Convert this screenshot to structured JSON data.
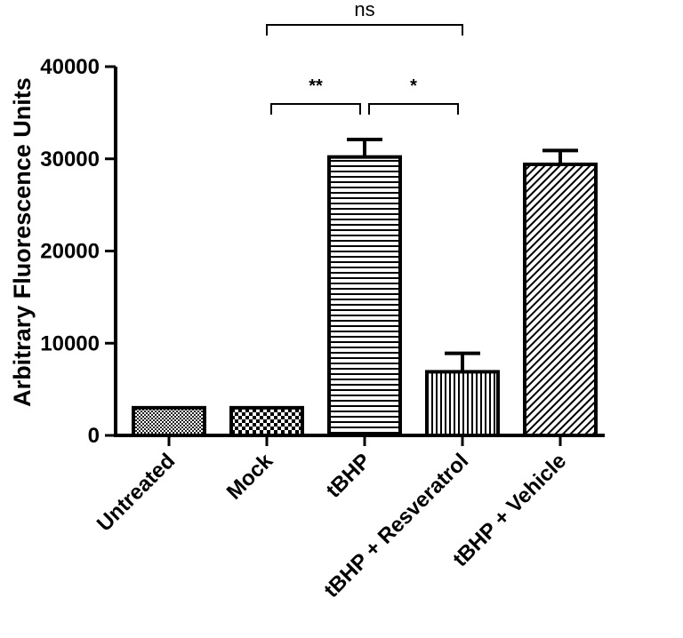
{
  "chart_data": {
    "type": "bar",
    "ylabel": "Arbitrary Fluorescence Units",
    "xlabel": "",
    "ylim": [
      0,
      40000
    ],
    "yticks": [
      0,
      10000,
      20000,
      30000,
      40000
    ],
    "ytick_labels": [
      "0",
      "10000",
      "20000",
      "30000",
      "40000"
    ],
    "categories": [
      "Untreated",
      "Mock",
      "tBHP",
      "tBHP + Resveratrol",
      "tBHP + Vehicle"
    ],
    "values": [
      3000,
      3000,
      30200,
      6900,
      29400
    ],
    "errors": [
      0,
      0,
      1900,
      2000,
      1500
    ],
    "patterns": [
      "crosshatch",
      "checker",
      "horizontal",
      "vertical",
      "diagonal"
    ],
    "grid": false,
    "comparisons": [
      {
        "from": "Mock",
        "to": "tBHP",
        "label": "**"
      },
      {
        "from": "tBHP",
        "to": "tBHP + Resveratrol",
        "label": "*"
      },
      {
        "from": "Mock",
        "to": "tBHP + Resveratrol",
        "label": "ns"
      }
    ]
  }
}
